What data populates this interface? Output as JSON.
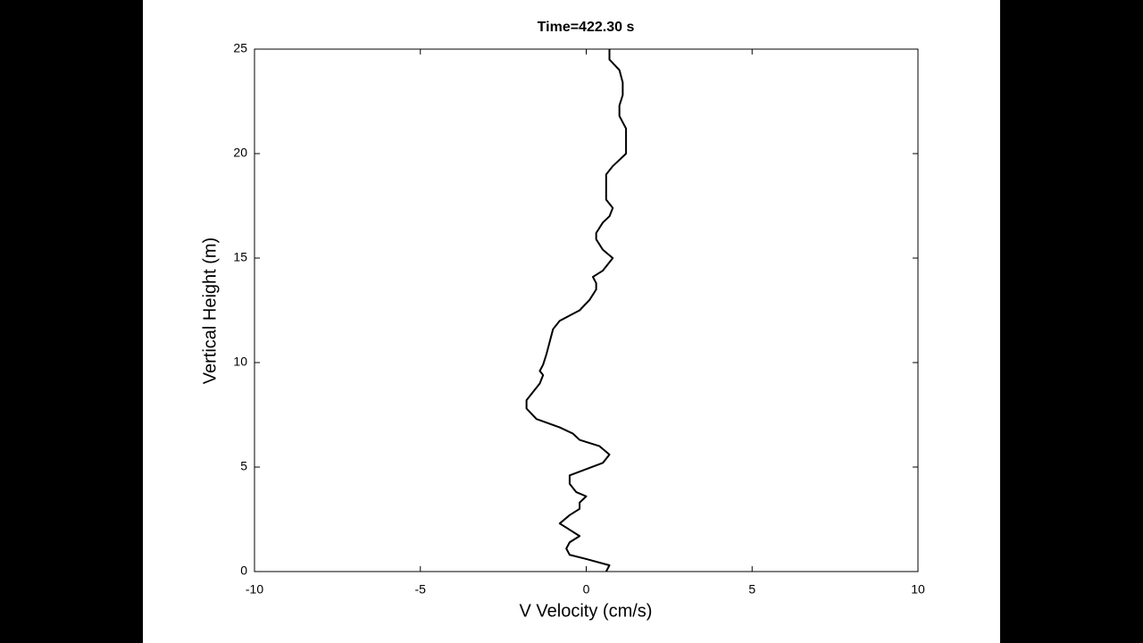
{
  "chart_data": {
    "type": "line",
    "title": "Time=422.30 s",
    "x_label": "V Velocity (cm/s)",
    "y_label": "Vertical Height (m)",
    "x": [
      0.6,
      0.7,
      0.0,
      -0.5,
      -0.6,
      -0.5,
      -0.2,
      -0.5,
      -0.8,
      -0.5,
      -0.2,
      -0.2,
      0.0,
      -0.3,
      -0.5,
      -0.5,
      0.0,
      0.5,
      0.7,
      0.4,
      -0.2,
      -0.4,
      -0.8,
      -1.5,
      -1.8,
      -1.8,
      -1.6,
      -1.4,
      -1.3,
      -1.4,
      -1.3,
      -1.2,
      -1.1,
      -1.0,
      -0.8,
      -0.2,
      0.1,
      0.3,
      0.3,
      0.2,
      0.5,
      0.8,
      0.5,
      0.3,
      0.3,
      0.5,
      0.7,
      0.8,
      0.6,
      0.6,
      0.6,
      0.8,
      1.2,
      1.2,
      1.2,
      1.0,
      1.0,
      1.1,
      1.1,
      1.0,
      0.7,
      0.7
    ],
    "values": [
      0,
      0.3,
      0.6,
      0.8,
      1.1,
      1.4,
      1.7,
      2.0,
      2.3,
      2.7,
      3.0,
      3.3,
      3.6,
      3.8,
      4.2,
      4.6,
      4.9,
      5.2,
      5.6,
      6.0,
      6.3,
      6.6,
      6.9,
      7.3,
      7.8,
      8.2,
      8.6,
      9.0,
      9.4,
      9.6,
      9.9,
      10.4,
      11.0,
      11.6,
      12.0,
      12.5,
      13.0,
      13.5,
      13.8,
      14.1,
      14.4,
      15.0,
      15.4,
      15.9,
      16.2,
      16.7,
      17.0,
      17.4,
      17.8,
      18.5,
      19.0,
      19.4,
      20.0,
      20.5,
      21.2,
      21.8,
      22.3,
      22.8,
      23.4,
      24.0,
      24.5,
      25.0
    ],
    "color": "#000000",
    "xlim": [
      -10,
      10
    ],
    "xticks": [
      -10,
      -5,
      0,
      5,
      10
    ],
    "ylim": [
      0,
      25
    ],
    "yticks": [
      0,
      5,
      10,
      15,
      20,
      25
    ]
  }
}
